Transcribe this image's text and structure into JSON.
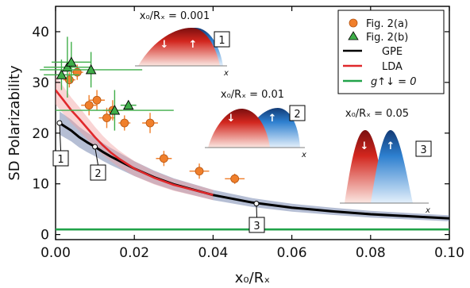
{
  "chart_data": {
    "type": "scatter",
    "xlabel": "x₀/Rₓ",
    "ylabel": "SD Polarizability",
    "xlim": [
      0,
      0.1
    ],
    "ylim": [
      -1,
      45
    ],
    "x_ticks": [
      "0.00",
      "0.02",
      "0.04",
      "0.06",
      "0.08",
      "0.10"
    ],
    "y_ticks": [
      "0",
      "10",
      "20",
      "30",
      "40"
    ],
    "legend": {
      "position": "top-right",
      "entries": [
        {
          "label": "Fig. 2(a)",
          "color": "#f07f2b",
          "marker": "circle"
        },
        {
          "label": "Fig. 2(b)",
          "color": "#3fae49",
          "marker": "triangle"
        },
        {
          "label": "GPE",
          "color": "#000000",
          "marker": "line"
        },
        {
          "label": "LDA",
          "color": "#e0282b",
          "marker": "line"
        },
        {
          "label": "g↑↓ = 0",
          "color": "#22a34a",
          "marker": "line"
        }
      ]
    },
    "series": [
      {
        "name": "Fig. 2(a)",
        "kind": "points",
        "color": "#f07f2b",
        "x": [
          0.0035,
          0.0055,
          0.0085,
          0.0105,
          0.013,
          0.0145,
          0.0175,
          0.024,
          0.0275,
          0.0365,
          0.0455
        ],
        "y": [
          30.5,
          32.0,
          25.5,
          26.5,
          23.0,
          24.5,
          22.0,
          22.0,
          15.0,
          12.5,
          11.0
        ],
        "xerr": [
          0.0015,
          0.0015,
          0.002,
          0.002,
          0.002,
          0.0025,
          0.0015,
          0.002,
          0.002,
          0.0025,
          0.0025
        ],
        "yerr": [
          1.5,
          1.5,
          2.0,
          2.0,
          2.0,
          2.0,
          1.5,
          2.0,
          1.5,
          1.5,
          1.0
        ]
      },
      {
        "name": "Fig. 2(b)",
        "kind": "points",
        "color": "#3fae49",
        "x": [
          0.0015,
          0.003,
          0.004,
          0.009,
          0.015,
          0.0185
        ],
        "y": [
          31.5,
          33.0,
          34.0,
          32.5,
          24.5,
          25.5
        ],
        "xerr": [
          0.0045,
          0.006,
          0.005,
          0.013,
          0.015,
          0.002
        ],
        "yerr": [
          3.0,
          6.0,
          4.0,
          3.5,
          4.0,
          0.5
        ]
      },
      {
        "name": "GPE",
        "kind": "line",
        "color": "#000000",
        "band": "#5a6fa0",
        "x": [
          0.001,
          0.002,
          0.004,
          0.006,
          0.008,
          0.01,
          0.012,
          0.014,
          0.016,
          0.02,
          0.025,
          0.03,
          0.04,
          0.05,
          0.06,
          0.07,
          0.08,
          0.09,
          0.1
        ],
        "y": [
          22.0,
          21.5,
          20.5,
          19.2,
          18.2,
          17.3,
          16.3,
          15.4,
          14.6,
          13.0,
          11.3,
          9.9,
          7.8,
          6.3,
          5.3,
          4.6,
          4.0,
          3.6,
          3.2
        ]
      },
      {
        "name": "LDA",
        "kind": "line",
        "color": "#e0282b",
        "band": "#f2a0a0",
        "x": [
          0.0,
          0.002,
          0.004,
          0.006,
          0.008,
          0.01,
          0.012,
          0.014,
          0.016,
          0.018,
          0.02,
          0.025,
          0.03,
          0.04
        ],
        "y": [
          28.5,
          26.5,
          24.5,
          22.8,
          21.0,
          19.2,
          17.6,
          16.2,
          15.0,
          14.0,
          13.0,
          11.2,
          9.8,
          7.8
        ]
      },
      {
        "name": "g↑↓ = 0",
        "kind": "line",
        "color": "#22a34a",
        "x": [
          0.0,
          0.1
        ],
        "y": [
          1.0,
          1.0
        ]
      }
    ],
    "markers": [
      {
        "label": "1",
        "x": 0.001,
        "y": 22.0
      },
      {
        "label": "2",
        "x": 0.01,
        "y": 17.3
      },
      {
        "label": "3",
        "x": 0.051,
        "y": 6.1
      }
    ],
    "insets": [
      {
        "label": "1",
        "title": "x₀/Rₓ = 0.001",
        "axis_symbol": "x",
        "arrows": [
          "↓",
          "↑"
        ]
      },
      {
        "label": "2",
        "title": "x₀/Rₓ = 0.01",
        "axis_symbol": "x",
        "arrows": [
          "↓",
          "↑"
        ]
      },
      {
        "label": "3",
        "title": "x₀/Rₓ = 0.05",
        "axis_symbol": "x",
        "arrows": [
          "↓",
          "↑"
        ]
      }
    ]
  }
}
